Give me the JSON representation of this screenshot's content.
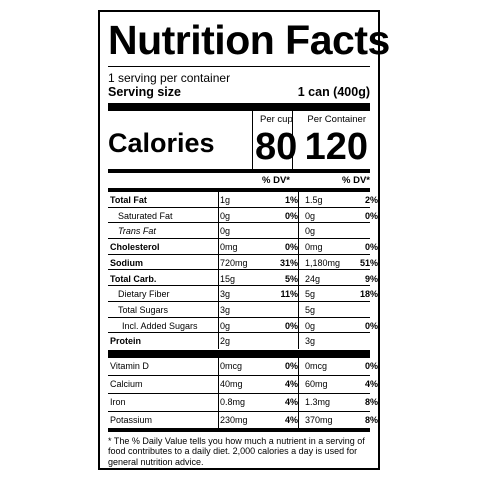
{
  "title": "Nutrition Facts",
  "servings_per_container": "1 serving per container",
  "serving_size_label": "Serving size",
  "serving_size_value": "1 can (400g)",
  "calories_label": "Calories",
  "col1_header": "Per cup",
  "col2_header": "Per Container",
  "calories_col1": "80",
  "calories_col2": "120",
  "dv_header": "% DV*",
  "rows": [
    {
      "name": "Total Fat",
      "bold": true,
      "a1": "1g",
      "p1": "1%",
      "a2": "1.5g",
      "p2": "2%"
    },
    {
      "name": "Saturated Fat",
      "indent": true,
      "a1": "0g",
      "p1": "0%",
      "a2": "0g",
      "p2": "0%"
    },
    {
      "name": "Trans Fat",
      "indent": true,
      "italic": true,
      "a1": "0g",
      "p1": "",
      "a2": "0g",
      "p2": ""
    },
    {
      "name": "Cholesterol",
      "bold": true,
      "a1": "0mg",
      "p1": "0%",
      "a2": "0mg",
      "p2": "0%"
    },
    {
      "name": "Sodium",
      "bold": true,
      "a1": "720mg",
      "p1": "31%",
      "a2": "1,180mg",
      "p2": "51%"
    },
    {
      "name": "Total Carb.",
      "bold": true,
      "a1": "15g",
      "p1": "5%",
      "a2": "24g",
      "p2": "9%"
    },
    {
      "name": "Dietary Fiber",
      "indent": true,
      "a1": "3g",
      "p1": "11%",
      "a2": "5g",
      "p2": "18%"
    },
    {
      "name": "Total Sugars",
      "indent": true,
      "a1": "3g",
      "p1": "",
      "a2": "5g",
      "p2": ""
    },
    {
      "name": "Incl. Added Sugars",
      "indent2": true,
      "a1": "0g",
      "p1": "0%",
      "a2": "0g",
      "p2": "0%"
    },
    {
      "name": "Protein",
      "bold": true,
      "a1": "2g",
      "p1": "",
      "a2": "3g",
      "p2": ""
    },
    {
      "name": "Vitamin D",
      "a1": "0mcg",
      "p1": "0%",
      "a2": "0mcg",
      "p2": "0%"
    },
    {
      "name": "Calcium",
      "a1": "40mg",
      "p1": "4%",
      "a2": "60mg",
      "p2": "4%"
    },
    {
      "name": "Iron",
      "a1": "0.8mg",
      "p1": "4%",
      "a2": "1.3mg",
      "p2": "8%"
    },
    {
      "name": "Potassium",
      "a1": "230mg",
      "p1": "4%",
      "a2": "370mg",
      "p2": "8%"
    }
  ],
  "footnote": "* The % Daily Value tells you how much a nutrient in a serving of food contributes to a daily diet. 2,000 calories a day is used for general nutrition advice."
}
